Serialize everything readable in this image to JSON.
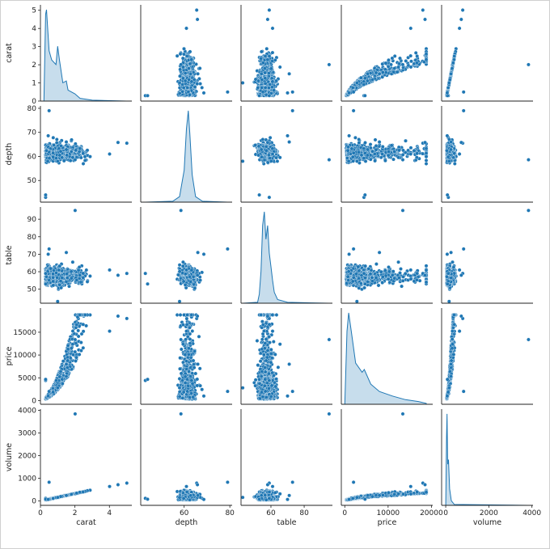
{
  "chart_data": {
    "type": "pairplot",
    "variables": [
      "carat",
      "depth",
      "table",
      "price",
      "volume"
    ],
    "color": "#1f77b4",
    "diagonal": "kde",
    "offdiagonal": "scatter",
    "ranges": {
      "carat": [
        0,
        5.3
      ],
      "depth": [
        41,
        81
      ],
      "table": [
        42,
        97
      ],
      "price": [
        -800,
        20300
      ],
      "volume": [
        -190,
        4050
      ]
    },
    "ticks": {
      "carat": [
        0,
        2,
        4
      ],
      "depth": [
        60,
        80
      ],
      "table": [
        60,
        80
      ],
      "price": [
        0,
        10000,
        20000
      ],
      "volume": [
        0,
        2000,
        4000
      ]
    },
    "y_ticks": {
      "carat": [
        0,
        1,
        2,
        3,
        4,
        5
      ],
      "depth": [
        50,
        60,
        70,
        80
      ],
      "table": [
        50,
        60,
        70,
        80,
        90
      ],
      "price": [
        0,
        5000,
        10000,
        15000
      ],
      "volume": [
        0,
        1000,
        2000,
        3000,
        4000
      ]
    },
    "kde": {
      "carat": [
        [
          0.2,
          0
        ],
        [
          0.3,
          0.95
        ],
        [
          0.35,
          1.0
        ],
        [
          0.5,
          0.55
        ],
        [
          0.65,
          0.45
        ],
        [
          0.9,
          0.4
        ],
        [
          1.0,
          0.6
        ],
        [
          1.1,
          0.45
        ],
        [
          1.3,
          0.2
        ],
        [
          1.5,
          0.22
        ],
        [
          1.6,
          0.12
        ],
        [
          2.0,
          0.08
        ],
        [
          2.3,
          0.03
        ],
        [
          3,
          0.01
        ],
        [
          5,
          0
        ]
      ],
      "depth": [
        [
          43,
          0
        ],
        [
          55,
          0.01
        ],
        [
          58,
          0.06
        ],
        [
          60,
          0.35
        ],
        [
          61,
          0.8
        ],
        [
          61.8,
          1.0
        ],
        [
          62.5,
          0.75
        ],
        [
          63.5,
          0.3
        ],
        [
          65,
          0.06
        ],
        [
          68,
          0.01
        ],
        [
          79,
          0
        ]
      ],
      "table": [
        [
          43,
          0
        ],
        [
          52,
          0.01
        ],
        [
          53,
          0.1
        ],
        [
          54,
          0.35
        ],
        [
          55,
          0.85
        ],
        [
          56,
          1.0
        ],
        [
          57,
          0.7
        ],
        [
          58,
          0.85
        ],
        [
          59,
          0.55
        ],
        [
          60,
          0.4
        ],
        [
          61,
          0.25
        ],
        [
          62,
          0.12
        ],
        [
          64,
          0.04
        ],
        [
          70,
          0.01
        ],
        [
          95,
          0
        ]
      ],
      "price": [
        [
          0,
          0
        ],
        [
          500,
          0.8
        ],
        [
          900,
          1.0
        ],
        [
          1500,
          0.8
        ],
        [
          2500,
          0.45
        ],
        [
          4000,
          0.35
        ],
        [
          4500,
          0.38
        ],
        [
          6000,
          0.22
        ],
        [
          8000,
          0.14
        ],
        [
          11000,
          0.09
        ],
        [
          14000,
          0.05
        ],
        [
          17000,
          0.03
        ],
        [
          18800,
          0.01
        ]
      ],
      "volume": [
        [
          0,
          0
        ],
        [
          40,
          0.75
        ],
        [
          60,
          1.0
        ],
        [
          90,
          0.45
        ],
        [
          130,
          0.5
        ],
        [
          180,
          0.18
        ],
        [
          260,
          0.05
        ],
        [
          400,
          0.01
        ],
        [
          3840,
          0
        ]
      ]
    },
    "outliers": [
      {
        "carat": 2.01,
        "depth": 58.6,
        "table": 95.0,
        "price": 13387,
        "volume": 3840
      },
      {
        "carat": 0.5,
        "depth": 79.0,
        "table": 73.0,
        "price": 2020,
        "volume": 830
      },
      {
        "carat": 0.3,
        "depth": 43.0,
        "table": 59.0,
        "price": 4420,
        "volume": 120
      },
      {
        "carat": 0.3,
        "depth": 44.0,
        "table": 53.0,
        "price": 4670,
        "volume": 80
      },
      {
        "carat": 1.0,
        "depth": 58.0,
        "table": 43.0,
        "price": 2800,
        "volume": 160
      },
      {
        "carat": 5.01,
        "depth": 65.5,
        "table": 59.0,
        "price": 18018,
        "volume": 790
      },
      {
        "carat": 4.5,
        "depth": 65.8,
        "table": 58.0,
        "price": 18531,
        "volume": 720
      },
      {
        "carat": 4.01,
        "depth": 61.0,
        "table": 61.0,
        "price": 15223,
        "volume": 640
      },
      {
        "carat": 0.45,
        "depth": 68.6,
        "table": 70.0,
        "price": 1000,
        "volume": 70
      },
      {
        "carat": 1.5,
        "depth": 66.0,
        "table": 71.0,
        "price": 8000,
        "volume": 245
      }
    ],
    "xlabels": [
      "carat",
      "depth",
      "table",
      "price",
      "volume"
    ],
    "ylabels": [
      "carat",
      "depth",
      "table",
      "price",
      "volume"
    ]
  }
}
